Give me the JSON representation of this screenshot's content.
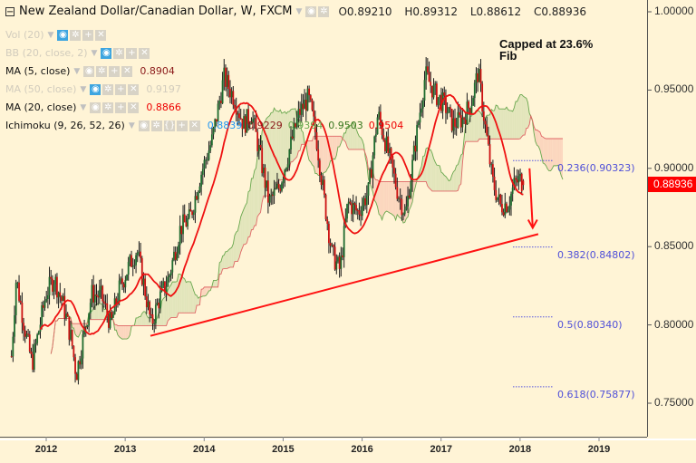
{
  "header": {
    "title": "New Zealand Dollar/Canadian Dollar, W, FXCM",
    "ohlc": {
      "open": "O0.89210",
      "high": "H0.89312",
      "low": "L0.88612",
      "close": "C0.88936"
    }
  },
  "indicators": [
    {
      "label": "Vol (20)",
      "dim": true,
      "value": null,
      "value_color": null,
      "active": true
    },
    {
      "label": "BB (20, close, 2)",
      "dim": true,
      "value": null,
      "value_color": null,
      "active": true
    },
    {
      "label": "MA (5, close)",
      "dim": false,
      "value": "0.8904",
      "value_color": "#8b1a1a",
      "active": false
    },
    {
      "label": "MA (50, close)",
      "dim": true,
      "value": "0.9197",
      "value_color": "#d2ccbd",
      "active": true
    },
    {
      "label": "MA (20, close)",
      "dim": false,
      "value": "0.8866",
      "value_color": "#ee0000",
      "active": false
    },
    {
      "label": "Ichimoku (9, 26, 52, 26)",
      "dim": false,
      "value": null,
      "value_color": null,
      "active": false
    }
  ],
  "ichimoku_values": [
    {
      "value": "0.8839",
      "color": "#2196f3"
    },
    {
      "value": "0.9229",
      "color": "#8b1a1a"
    },
    {
      "value": "0.9394",
      "color": "#6aa84f"
    },
    {
      "value": "0.9503",
      "color": "#38761d"
    },
    {
      "value": "0.9504",
      "color": "#ee0000"
    }
  ],
  "annotation": {
    "line1": "Capped at 23.6%",
    "line2": "Fib"
  },
  "fib_levels": [
    {
      "label": "0.236(0.90323)",
      "price": 0.90323
    },
    {
      "label": "0.382(0.84802)",
      "price": 0.84802
    },
    {
      "label": "0.5(0.80340)",
      "price": 0.8034
    },
    {
      "label": "0.618(0.75877)",
      "price": 0.75877
    }
  ],
  "current_price": "0.88936",
  "colors": {
    "background": "#fff4d6",
    "up_candle": "#1e6b2e",
    "down_candle": "#cc1111",
    "ma": "#ee1111",
    "trendline": "#ff1111",
    "fib": "#5555dd",
    "cloud_bull": "#dfe3b8",
    "cloud_bear": "#fbd3bb",
    "span_a": "#6aa84f",
    "span_b": "#e06666"
  },
  "chart_data": {
    "type": "candlestick",
    "title": "New Zealand Dollar/Canadian Dollar, W, FXCM",
    "xlabel": "",
    "ylabel": "",
    "ylim": [
      0.735,
      1.007
    ],
    "xlim": [
      2011.55,
      2019.58
    ],
    "y_ticks": [
      "1.00000",
      "0.95000",
      "0.90000",
      "0.85000",
      "0.80000",
      "0.75000"
    ],
    "y_tick_values": [
      1.0,
      0.95,
      0.9,
      0.85,
      0.8,
      0.75
    ],
    "x_ticks": [
      "2012",
      "2013",
      "2014",
      "2015",
      "2016",
      "2017",
      "2018",
      "2019"
    ],
    "x_tick_values": [
      2012,
      2013,
      2014,
      2015,
      2016,
      2017,
      2018,
      2019
    ],
    "close_path": [
      [
        2011.56,
        0.78
      ],
      [
        2011.62,
        0.83
      ],
      [
        2011.72,
        0.8
      ],
      [
        2011.82,
        0.775
      ],
      [
        2011.92,
        0.8
      ],
      [
        2012.0,
        0.82
      ],
      [
        2012.1,
        0.83
      ],
      [
        2012.22,
        0.812
      ],
      [
        2012.32,
        0.79
      ],
      [
        2012.38,
        0.768
      ],
      [
        2012.48,
        0.795
      ],
      [
        2012.58,
        0.82
      ],
      [
        2012.7,
        0.818
      ],
      [
        2012.82,
        0.8
      ],
      [
        2012.92,
        0.822
      ],
      [
        2013.05,
        0.838
      ],
      [
        2013.15,
        0.848
      ],
      [
        2013.25,
        0.822
      ],
      [
        2013.33,
        0.8
      ],
      [
        2013.42,
        0.815
      ],
      [
        2013.55,
        0.83
      ],
      [
        2013.7,
        0.862
      ],
      [
        2013.82,
        0.868
      ],
      [
        2013.95,
        0.895
      ],
      [
        2014.1,
        0.918
      ],
      [
        2014.25,
        0.958
      ],
      [
        2014.38,
        0.945
      ],
      [
        2014.5,
        0.928
      ],
      [
        2014.6,
        0.935
      ],
      [
        2014.72,
        0.905
      ],
      [
        2014.82,
        0.878
      ],
      [
        2014.95,
        0.888
      ],
      [
        2015.08,
        0.912
      ],
      [
        2015.2,
        0.935
      ],
      [
        2015.32,
        0.945
      ],
      [
        2015.42,
        0.92
      ],
      [
        2015.52,
        0.88
      ],
      [
        2015.62,
        0.845
      ],
      [
        2015.72,
        0.835
      ],
      [
        2015.82,
        0.878
      ],
      [
        2015.95,
        0.872
      ],
      [
        2016.08,
        0.885
      ],
      [
        2016.2,
        0.935
      ],
      [
        2016.32,
        0.912
      ],
      [
        2016.45,
        0.885
      ],
      [
        2016.55,
        0.87
      ],
      [
        2016.68,
        0.918
      ],
      [
        2016.8,
        0.96
      ],
      [
        2016.92,
        0.948
      ],
      [
        2017.05,
        0.94
      ],
      [
        2017.15,
        0.928
      ],
      [
        2017.28,
        0.932
      ],
      [
        2017.38,
        0.942
      ],
      [
        2017.47,
        0.962
      ],
      [
        2017.55,
        0.93
      ],
      [
        2017.65,
        0.892
      ],
      [
        2017.75,
        0.876
      ],
      [
        2017.85,
        0.878
      ],
      [
        2017.93,
        0.89
      ],
      [
        2018.0,
        0.893
      ],
      [
        2018.05,
        0.889
      ]
    ],
    "trendline": [
      [
        2013.32,
        0.793
      ],
      [
        2018.23,
        0.858
      ]
    ],
    "forecast_arrow": [
      [
        2018.12,
        0.9
      ],
      [
        2018.16,
        0.862
      ]
    ],
    "last_ma": {
      "ma5": 0.8904,
      "ma20": 0.8866
    }
  }
}
